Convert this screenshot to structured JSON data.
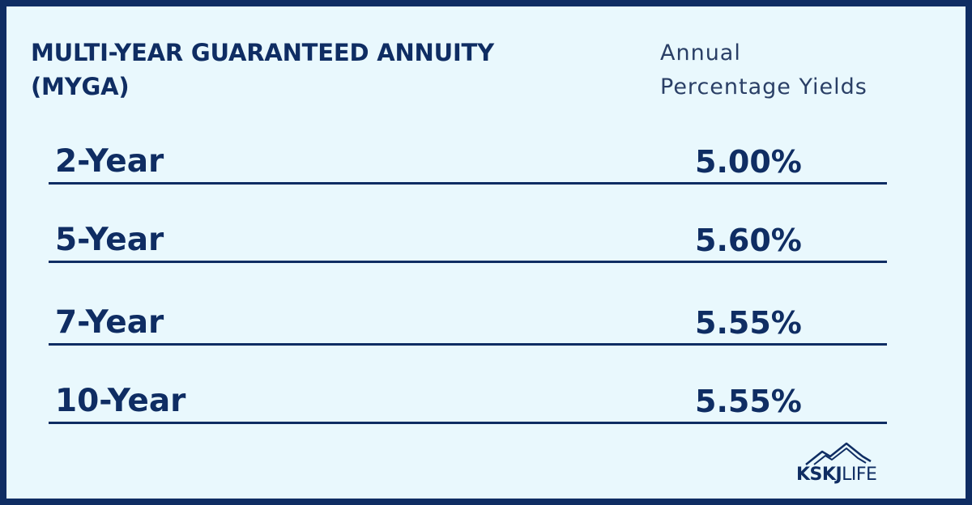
{
  "header": {
    "title_line1": "MULTI-YEAR GUARANTEED ANNUITY",
    "title_line2": "(MYGA)",
    "subtitle_line1": "Annual",
    "subtitle_line2": "Percentage Yields"
  },
  "rates": [
    {
      "term": "2-Year",
      "apy": "5.00%"
    },
    {
      "term": "5-Year",
      "apy": "5.60%"
    },
    {
      "term": "7-Year",
      "apy": "5.55%"
    },
    {
      "term": "10-Year",
      "apy": "5.55%"
    }
  ],
  "logo": {
    "text_bold": "KSKJ",
    "text_light": "LIFE",
    "icon": "mountain-peaks-icon"
  },
  "colors": {
    "navy": "#0f2d63",
    "background": "#e9f8fd"
  }
}
